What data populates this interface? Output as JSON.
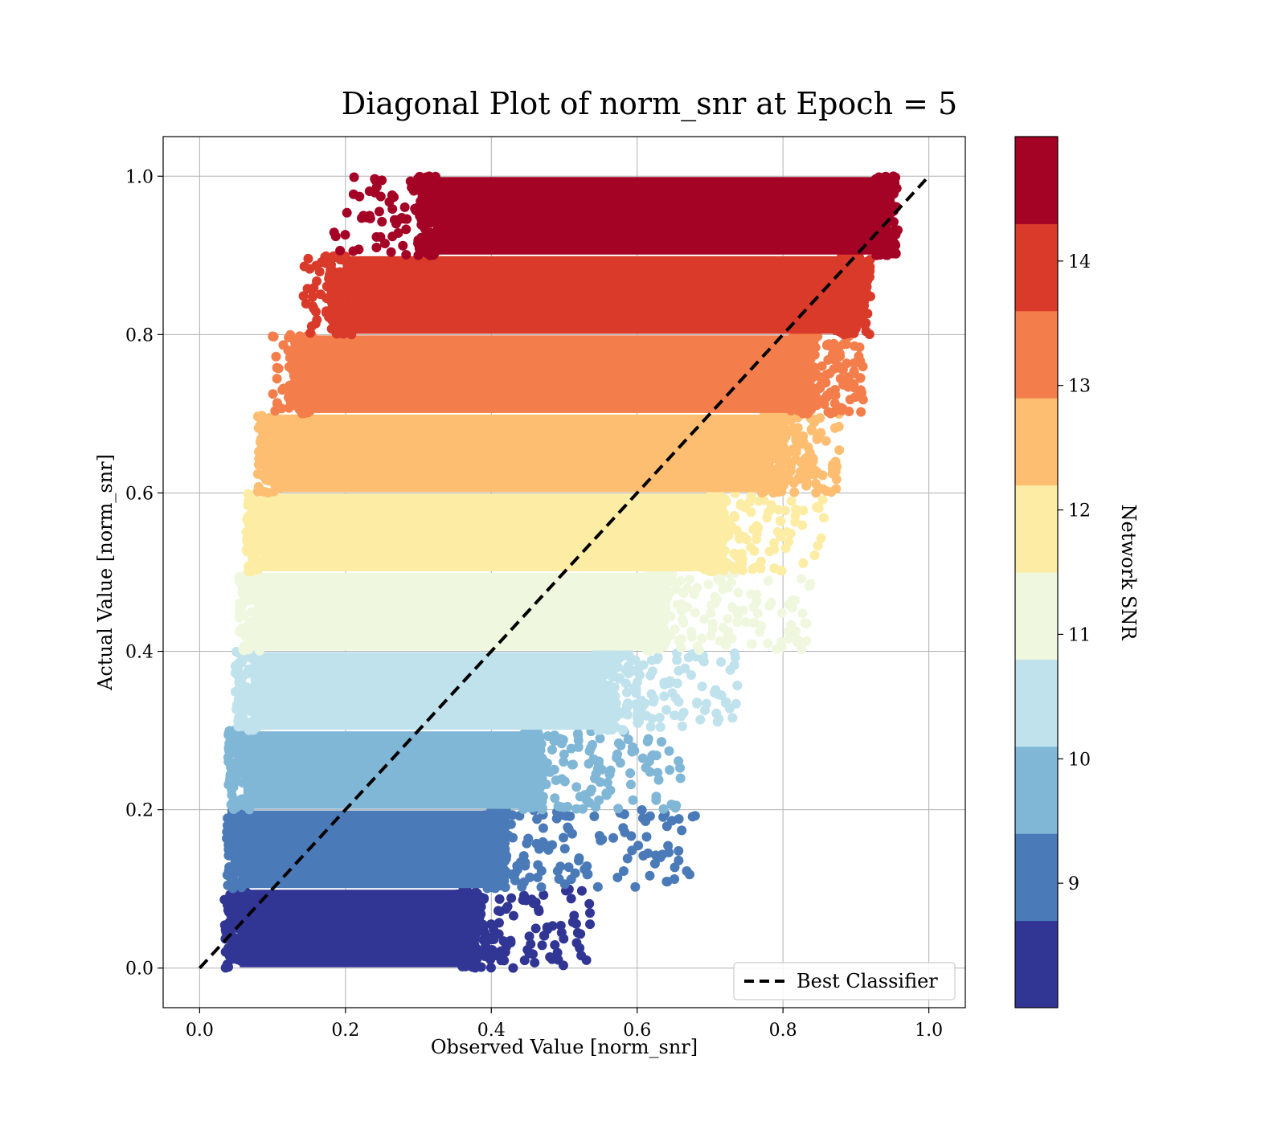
{
  "chart_data": {
    "type": "scatter",
    "title": "Diagonal Plot of norm_snr at Epoch = 5",
    "xlabel": "Observed Value [norm_snr]",
    "ylabel": "Actual Value [norm_snr]",
    "xlim": [
      -0.05,
      1.05
    ],
    "ylim": [
      -0.05,
      1.05
    ],
    "xticks": [
      "0.0",
      "0.2",
      "0.4",
      "0.6",
      "0.8",
      "1.0"
    ],
    "yticks": [
      "0.0",
      "0.2",
      "0.4",
      "0.6",
      "0.8",
      "1.0"
    ],
    "grid": true,
    "legend": {
      "placement": "bottom-right",
      "entries": [
        {
          "name": "Best Classifier",
          "style": "dashed",
          "color": "#000000"
        }
      ]
    },
    "series": [
      {
        "name": "Best Classifier",
        "type": "line",
        "style": "dashed",
        "x": [
          0.0,
          1.0
        ],
        "y": [
          0.0,
          1.0
        ]
      }
    ],
    "bands": [
      {
        "y_range": [
          0.0,
          0.1
        ],
        "x_core": [
          0.055,
          0.36
        ],
        "x_spread": 0.54,
        "color": "#313695"
      },
      {
        "y_range": [
          0.1,
          0.2
        ],
        "x_core": [
          0.057,
          0.4
        ],
        "x_spread": 0.68,
        "color": "#4a7ab7"
      },
      {
        "y_range": [
          0.2,
          0.3
        ],
        "x_core": [
          0.06,
          0.45
        ],
        "x_spread": 0.66,
        "color": "#80b6d6"
      },
      {
        "y_range": [
          0.3,
          0.4
        ],
        "x_core": [
          0.07,
          0.55
        ],
        "x_spread": 0.74,
        "color": "#bfe2ec"
      },
      {
        "y_range": [
          0.4,
          0.5
        ],
        "x_core": [
          0.075,
          0.62
        ],
        "x_spread": 0.84,
        "color": "#eff8df"
      },
      {
        "y_range": [
          0.5,
          0.6
        ],
        "x_core": [
          0.085,
          0.7
        ],
        "x_spread": 0.86,
        "color": "#fdeda4"
      },
      {
        "y_range": [
          0.6,
          0.7
        ],
        "x_core": [
          0.1,
          0.78
        ],
        "x_spread": 0.88,
        "color": "#fdbe71"
      },
      {
        "y_range": [
          0.7,
          0.8
        ],
        "x_core": [
          0.15,
          0.82
        ],
        "x_spread": 0.91,
        "color": "#f47e4b"
      },
      {
        "y_range": [
          0.8,
          0.9
        ],
        "x_core": [
          0.2,
          0.88
        ],
        "x_spread": 0.92,
        "color": "#d93a29"
      },
      {
        "y_range": [
          0.9,
          1.0
        ],
        "x_core": [
          0.32,
          0.93
        ],
        "x_spread": 0.96,
        "color": "#a40326"
      }
    ],
    "colorbar": {
      "label": "Network SNR",
      "range": [
        8.0,
        15.0
      ],
      "ticks": [
        "9",
        "10",
        "11",
        "12",
        "13",
        "14"
      ],
      "colors": [
        "#313695",
        "#4a7ab7",
        "#80b6d6",
        "#bfe2ec",
        "#eff8df",
        "#fdeda4",
        "#fdbe71",
        "#f47e4b",
        "#d93a29",
        "#a40326"
      ]
    }
  }
}
